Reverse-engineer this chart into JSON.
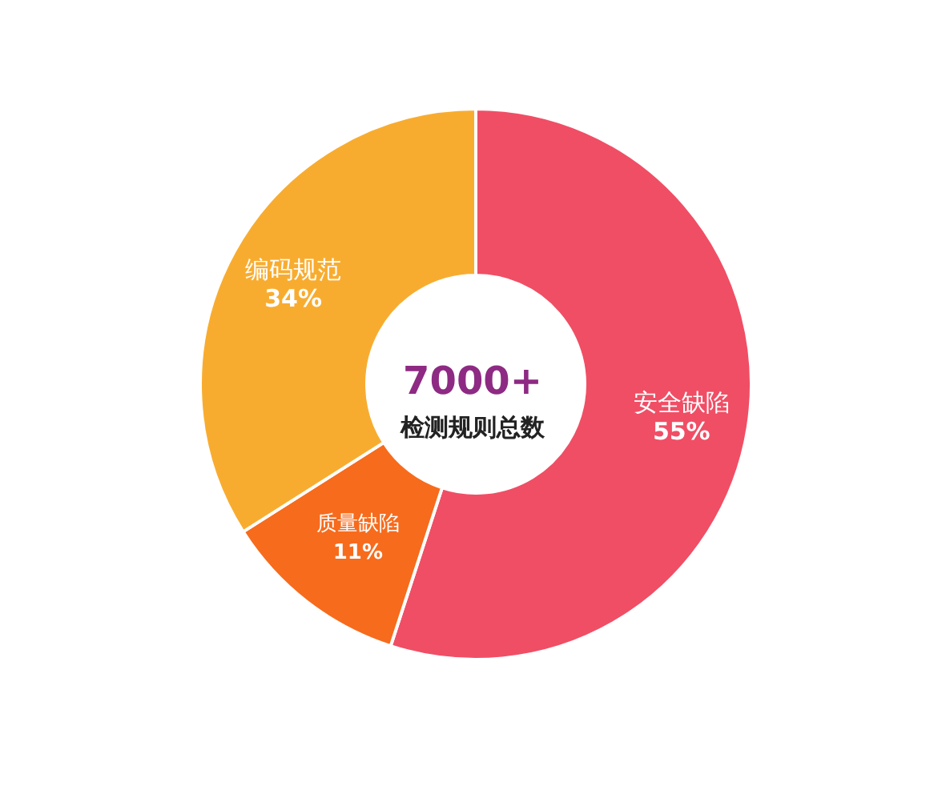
{
  "chart_data": {
    "type": "donut",
    "categories": [
      "安全缺陷",
      "质量缺陷",
      "编码规范"
    ],
    "values": [
      55,
      11,
      34
    ],
    "colors": [
      "#f04e65",
      "#f76b1c",
      "#f8ac2f"
    ],
    "value_labels": [
      "55%",
      "11%",
      "34%"
    ],
    "annotations": [
      "7000+",
      "检测规则总数"
    ]
  }
}
